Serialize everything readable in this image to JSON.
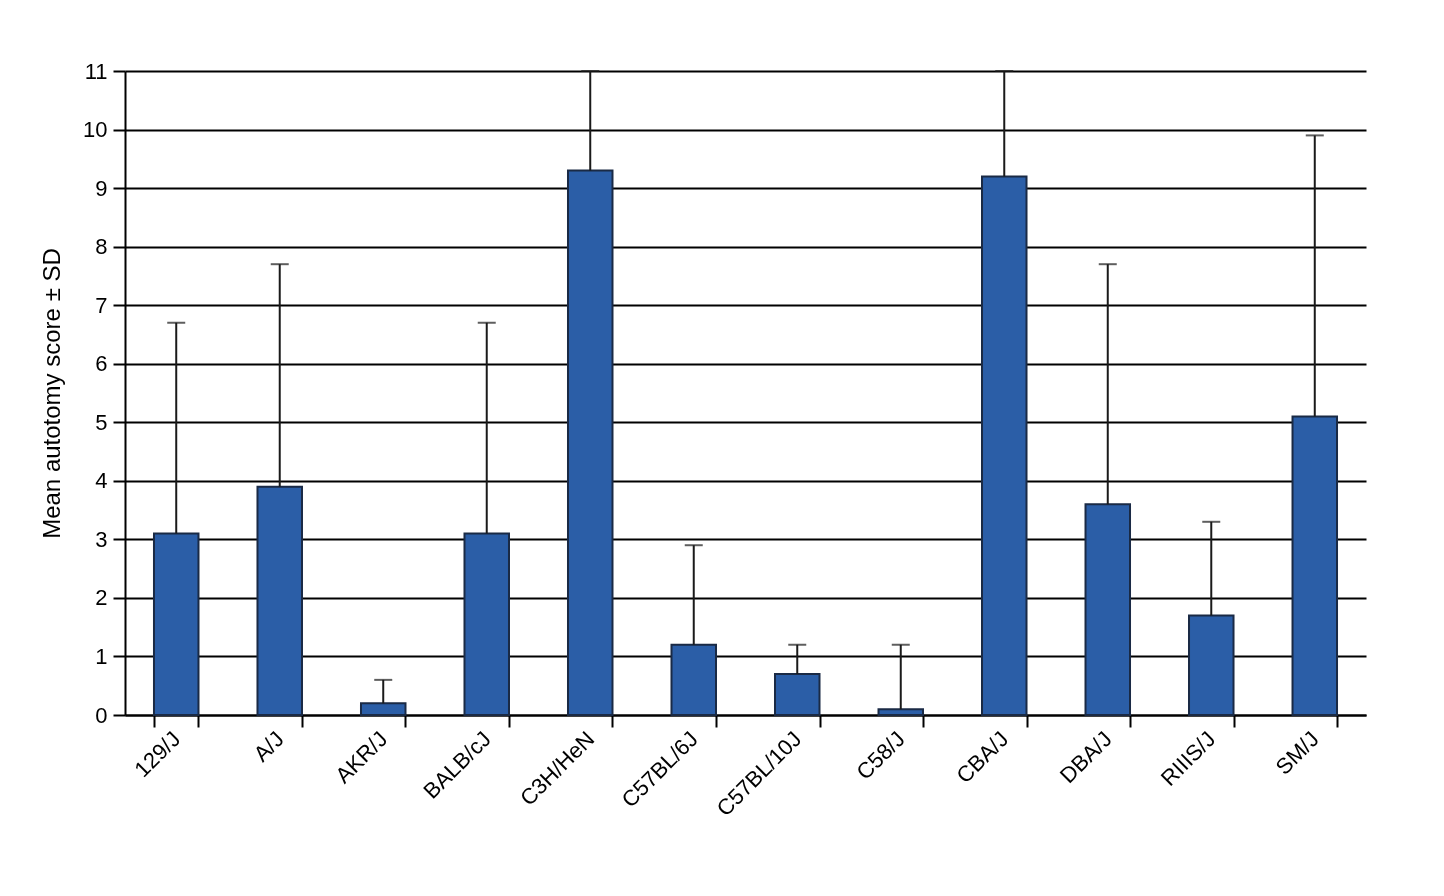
{
  "chart_data": {
    "type": "bar",
    "ylabel": "Mean autotomy score ± SD",
    "categories": [
      "129/J",
      "A/J",
      "AKR/J",
      "BALB/cJ",
      "C3H/HeN",
      "C57BL/6J",
      "C57BL/10J",
      "C58/J",
      "CBA/J",
      "DBA/J",
      "RIIIS/J",
      "SM/J"
    ],
    "values": [
      3.1,
      3.9,
      0.2,
      3.1,
      9.3,
      1.2,
      0.7,
      0.1,
      9.2,
      3.6,
      1.7,
      5.1
    ],
    "errors": [
      [
        3.1,
        6.7
      ],
      [
        3.9,
        7.7
      ],
      [
        0.2,
        0.6
      ],
      [
        3.1,
        6.7
      ],
      [
        9.3,
        11
      ],
      [
        1.2,
        2.9
      ],
      [
        0.7,
        1.2
      ],
      [
        0.1,
        1.2
      ],
      [
        9.2,
        11
      ],
      [
        3.6,
        7.7
      ],
      [
        1.7,
        3.3
      ],
      [
        5.1,
        9.9
      ]
    ],
    "color": "#2b5ea7",
    "ylim": [
      0,
      11
    ],
    "yticks": [
      0,
      1,
      2,
      3,
      4,
      5,
      6,
      7,
      8,
      9,
      10,
      11
    ],
    "grid": "y"
  }
}
